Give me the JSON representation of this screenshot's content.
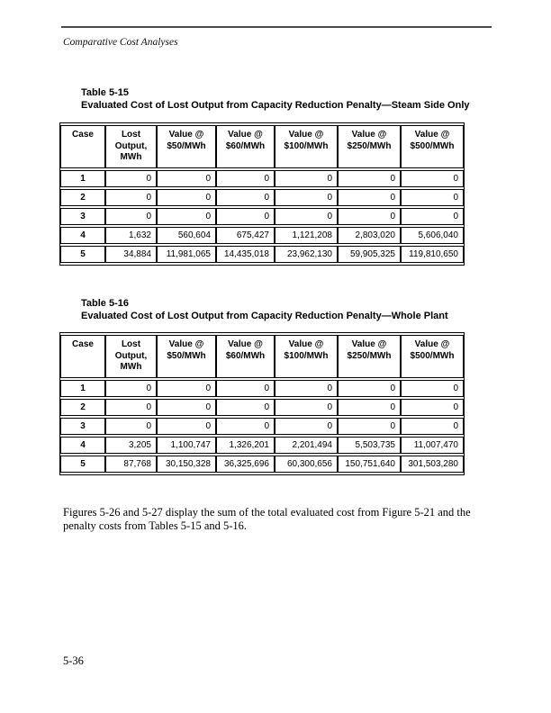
{
  "page": {
    "running_head": "Comparative Cost Analyses",
    "page_number": "5-36",
    "body_text": "Figures 5-26 and 5-27 display the sum of the total evaluated cost from Figure 5-21 and the penalty costs from Tables 5-15 and 5-16."
  },
  "tables": [
    {
      "label": "Table 5-15",
      "title": "Evaluated Cost of Lost Output from Capacity Reduction Penalty—Steam Side Only",
      "columns": [
        "Case",
        "Lost\nOutput,\nMWh",
        "Value @\n$50/MWh",
        "Value @\n$60/MWh",
        "Value @\n$100/MWh",
        "Value @\n$250/MWh",
        "Value @\n$500/MWh"
      ],
      "rows": [
        {
          "case": "1",
          "values": [
            "0",
            "0",
            "0",
            "0",
            "0",
            "0"
          ]
        },
        {
          "case": "2",
          "values": [
            "0",
            "0",
            "0",
            "0",
            "0",
            "0"
          ]
        },
        {
          "case": "3",
          "values": [
            "0",
            "0",
            "0",
            "0",
            "0",
            "0"
          ]
        },
        {
          "case": "4",
          "values": [
            "1,632",
            "560,604",
            "675,427",
            "1,121,208",
            "2,803,020",
            "5,606,040"
          ]
        },
        {
          "case": "5",
          "values": [
            "34,884",
            "11,981,065",
            "14,435,018",
            "23,962,130",
            "59,905,325",
            "119,810,650"
          ]
        }
      ]
    },
    {
      "label": "Table 5-16",
      "title": "Evaluated Cost of Lost Output from Capacity Reduction Penalty—Whole Plant",
      "columns": [
        "Case",
        "Lost\nOutput,\nMWh",
        "Value @\n$50/MWh",
        "Value @\n$60/MWh",
        "Value @\n$100/MWh",
        "Value @\n$250/MWh",
        "Value @\n$500/MWh"
      ],
      "rows": [
        {
          "case": "1",
          "values": [
            "0",
            "0",
            "0",
            "0",
            "0",
            "0"
          ]
        },
        {
          "case": "2",
          "values": [
            "0",
            "0",
            "0",
            "0",
            "0",
            "0"
          ]
        },
        {
          "case": "3",
          "values": [
            "0",
            "0",
            "0",
            "0",
            "0",
            "0"
          ]
        },
        {
          "case": "4",
          "values": [
            "3,205",
            "1,100,747",
            "1,326,201",
            "2,201,494",
            "5,503,735",
            "11,007,470"
          ]
        },
        {
          "case": "5",
          "values": [
            "87,768",
            "30,150,328",
            "36,325,696",
            "60,300,656",
            "150,751,640",
            "301,503,280"
          ]
        }
      ]
    }
  ]
}
